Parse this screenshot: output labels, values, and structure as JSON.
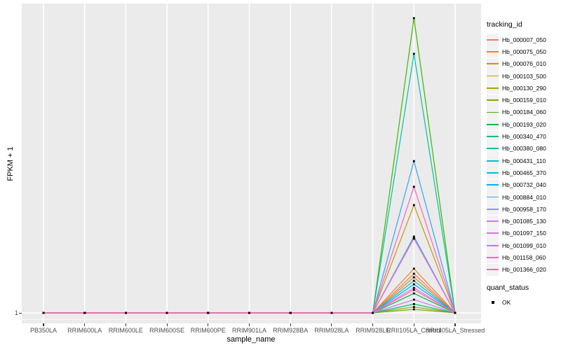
{
  "axes": {
    "x": {
      "title": "sample_name",
      "categories": [
        "PB350LA",
        "RRIM600LA",
        "RRIM600LE",
        "RRIM600SE",
        "RRIM600PE",
        "RRIM901LA",
        "RRIM928BA",
        "RRIM928LA",
        "RRIM928LE",
        "RRII105LA_Control",
        "RRII105LA_Stressed"
      ]
    },
    "y": {
      "title": "FPKM + 1",
      "tick_label": "1"
    }
  },
  "legend": {
    "tracking_title": "tracking_id",
    "quant_title": "quant_status",
    "quant_items": [
      {
        "label": "OK",
        "shape": "black-square"
      }
    ]
  },
  "colors": {
    "panel_bg": "#EBEBEB",
    "gridline": "#FFFFFF",
    "tick_text": "#4D4D4D",
    "axis_title_text": "#000000",
    "point_marker": "#000000",
    "legend_key_bg": "#F2F2F2"
  },
  "chart_data": {
    "type": "line",
    "xlabel": "sample_name",
    "ylabel": "FPKM + 1",
    "x_categories": [
      "PB350LA",
      "RRIM600LA",
      "RRIM600LE",
      "RRIM600SE",
      "RRIM600PE",
      "RRIM901LA",
      "RRIM928BA",
      "RRIM928LA",
      "RRIM928LE",
      "RRII105LA_Control",
      "RRII105LA_Stressed"
    ],
    "y_tick_labels": [
      "1"
    ],
    "baseline_value": 1,
    "peak_sample": "RRII105LA_Control",
    "note": "Every tracking_id is flat at FPKM+1 = 1 for all samples except a single spike at RRII105LA_Control, returning to 1 at RRII105LA_Stressed. Only the value 1 is labeled on the y axis, so spike heights are recorded as fractions of the tallest spike (Hb_000184_060 = 1.0). Black square points mark every observation (quant_status = OK).",
    "series": [
      {
        "name": "Hb_000007_050",
        "color": "#F8766D",
        "peak_height_frac": 0.133
      },
      {
        "name": "Hb_000075_050",
        "color": "#EA8331",
        "peak_height_frac": 0.15
      },
      {
        "name": "Hb_000076_010",
        "color": "#D89000",
        "peak_height_frac": 0.121
      },
      {
        "name": "Hb_000103_500",
        "color": "#C49A00",
        "peak_height_frac": 0.366
      },
      {
        "name": "Hb_000130_290",
        "color": "#A3A500",
        "peak_height_frac": 0.02
      },
      {
        "name": "Hb_000159_010",
        "color": "#7CAE00",
        "peak_height_frac": 0.012
      },
      {
        "name": "Hb_000184_060",
        "color": "#39B600",
        "peak_height_frac": 1.0
      },
      {
        "name": "Hb_000193_020",
        "color": "#00BB4E",
        "peak_height_frac": 0.066
      },
      {
        "name": "Hb_000340_470",
        "color": "#00BF7D",
        "peak_height_frac": 0.03
      },
      {
        "name": "Hb_000380_080",
        "color": "#00C1A3",
        "peak_height_frac": 0.879
      },
      {
        "name": "Hb_000431_110",
        "color": "#00BFC4",
        "peak_height_frac": 0.259
      },
      {
        "name": "Hb_000465_370",
        "color": "#00BAE0",
        "peak_height_frac": 0.109
      },
      {
        "name": "Hb_000732_040",
        "color": "#00B0F6",
        "peak_height_frac": 0.097
      },
      {
        "name": "Hb_000884_010",
        "color": "#35A2FF",
        "peak_height_frac": 0.515
      },
      {
        "name": "Hb_000958_170",
        "color": "#9590FF",
        "peak_height_frac": 0.254
      },
      {
        "name": "Hb_001085_130",
        "color": "#C77CFF",
        "peak_height_frac": 0.045
      },
      {
        "name": "Hb_001097_150",
        "color": "#E76BF3",
        "peak_height_frac": 0.085
      },
      {
        "name": "Hb_001099_010",
        "color": "#FA62DB",
        "peak_height_frac": 0.252
      },
      {
        "name": "Hb_001158_060",
        "color": "#FF62BC",
        "peak_height_frac": 0.428
      },
      {
        "name": "Hb_001366_020",
        "color": "#FF6A98",
        "peak_height_frac": 0.078
      }
    ]
  }
}
